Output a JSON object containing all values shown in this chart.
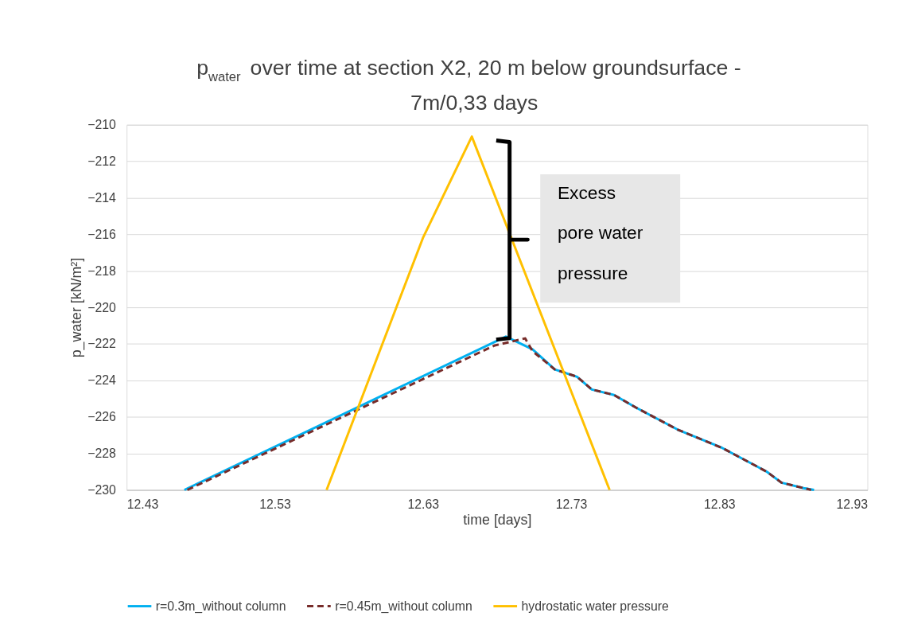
{
  "chart_data": {
    "type": "line",
    "title": "p$_{water}$ over time at section X2, 20 m below groundsurface -\n7m/0,33 days",
    "xlabel": "time [days]",
    "ylabel": "p_water [kN/m²]",
    "xlim": [
      12.43,
      12.93
    ],
    "xticks": [
      12.43,
      12.53,
      12.63,
      12.73,
      12.83,
      12.93
    ],
    "ylim": [
      -230,
      -210
    ],
    "yticks": [
      -230,
      -228,
      -226,
      -224,
      -222,
      -220,
      -218,
      -216,
      -214,
      -212,
      -210
    ],
    "grid": "y",
    "legend": "bottom",
    "marker": "none",
    "annotations": [
      "Excess pore water pressure"
    ],
    "series": [
      {
        "name": "r=0.3m_without column",
        "color": "#00b0f0",
        "line_style": "solid",
        "x": [
          12.469,
          12.686,
          12.704,
          12.719,
          12.734,
          12.744,
          12.759,
          12.774,
          12.802,
          12.832,
          12.862,
          12.872,
          12.887,
          12.894
        ],
        "values": [
          -230,
          -221.6,
          -222.3,
          -223.4,
          -223.8,
          -224.5,
          -224.8,
          -225.5,
          -226.7,
          -227.7,
          -229.0,
          -229.6,
          -229.9,
          -230
        ]
      },
      {
        "name": "r=0.45m_without column",
        "color": "#772c2a",
        "line_style": "dashed",
        "x": [
          12.471,
          12.678,
          12.699,
          12.704,
          12.719,
          12.734,
          12.744,
          12.759,
          12.774,
          12.802,
          12.832,
          12.862,
          12.872,
          12.887,
          12.892
        ],
        "values": [
          -230,
          -222.1,
          -221.7,
          -222.4,
          -223.4,
          -223.8,
          -224.5,
          -224.8,
          -225.5,
          -226.7,
          -227.7,
          -229.0,
          -229.6,
          -229.9,
          -230
        ]
      },
      {
        "name": "hydrostatic water pressure",
        "color": "#ffc000",
        "line_style": "solid",
        "x": [
          12.565,
          12.63,
          12.663,
          12.756
        ],
        "values": [
          -230,
          -216.2,
          -210.65,
          -230
        ]
      }
    ]
  }
}
